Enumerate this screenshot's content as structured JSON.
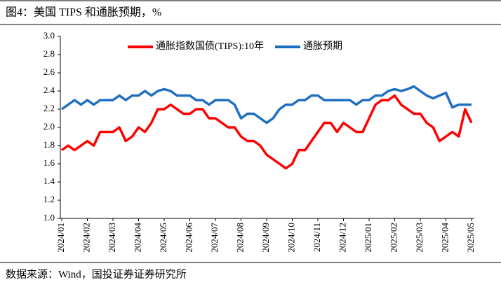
{
  "chart_data": {
    "type": "line",
    "title": "图4：美国 TIPS 和通胀预期，%",
    "source": "数据来源：Wind，国投证券证券研究所",
    "categories": [
      "2024/01",
      null,
      null,
      null,
      "2024/02",
      null,
      null,
      null,
      "2024/03",
      null,
      null,
      null,
      "2024/04",
      null,
      null,
      null,
      "2024/05",
      null,
      null,
      null,
      "2024/06",
      null,
      null,
      null,
      "2024/07",
      null,
      null,
      null,
      "2024/08",
      null,
      null,
      null,
      "2024/09",
      null,
      null,
      null,
      "2024/10",
      null,
      null,
      null,
      "2024/11",
      null,
      null,
      null,
      "2024/12",
      null,
      null,
      null,
      "2025/01",
      null,
      null,
      null,
      "2025/02",
      null,
      null,
      null,
      "2025/03",
      null,
      null,
      null,
      "2025/04",
      null,
      null,
      null,
      "2025/05"
    ],
    "series": [
      {
        "name": "通胀指数国债(TIPS):10年",
        "color": "#ff0000",
        "values": [
          1.75,
          1.8,
          1.75,
          1.8,
          1.85,
          1.8,
          1.95,
          1.95,
          1.95,
          2.0,
          1.85,
          1.9,
          2.0,
          1.95,
          2.05,
          2.2,
          2.2,
          2.25,
          2.2,
          2.15,
          2.15,
          2.2,
          2.2,
          2.1,
          2.1,
          2.05,
          2.0,
          2.0,
          1.9,
          1.85,
          1.85,
          1.8,
          1.7,
          1.65,
          1.6,
          1.55,
          1.6,
          1.75,
          1.75,
          1.85,
          1.95,
          2.05,
          2.05,
          1.95,
          2.05,
          2.0,
          1.95,
          1.95,
          2.1,
          2.25,
          2.3,
          2.3,
          2.35,
          2.25,
          2.2,
          2.15,
          2.15,
          2.05,
          2.0,
          1.85,
          1.9,
          1.95,
          1.9,
          2.2,
          2.05
        ]
      },
      {
        "name": "通胀预期",
        "color": "#1f6fc0",
        "values": [
          2.2,
          2.25,
          2.3,
          2.25,
          2.3,
          2.25,
          2.3,
          2.3,
          2.3,
          2.35,
          2.3,
          2.35,
          2.35,
          2.4,
          2.35,
          2.4,
          2.42,
          2.4,
          2.35,
          2.35,
          2.35,
          2.3,
          2.3,
          2.25,
          2.3,
          2.3,
          2.3,
          2.25,
          2.1,
          2.15,
          2.15,
          2.1,
          2.05,
          2.1,
          2.2,
          2.25,
          2.25,
          2.3,
          2.3,
          2.35,
          2.35,
          2.3,
          2.3,
          2.3,
          2.3,
          2.3,
          2.25,
          2.3,
          2.3,
          2.35,
          2.35,
          2.4,
          2.42,
          2.4,
          2.42,
          2.45,
          2.4,
          2.35,
          2.32,
          2.35,
          2.38,
          2.22,
          2.25,
          2.25,
          2.25
        ]
      }
    ],
    "ylim": [
      1.0,
      3.0
    ],
    "yticks": [
      {
        "value": 1.0,
        "label": "1.0"
      },
      1.2,
      1.4,
      1.6,
      1.8,
      {
        "value": 2.0,
        "label": "2.0"
      },
      2.2,
      2.4,
      2.6,
      2.8,
      {
        "value": 3.0,
        "label": "3.0"
      }
    ],
    "legend": "top"
  }
}
